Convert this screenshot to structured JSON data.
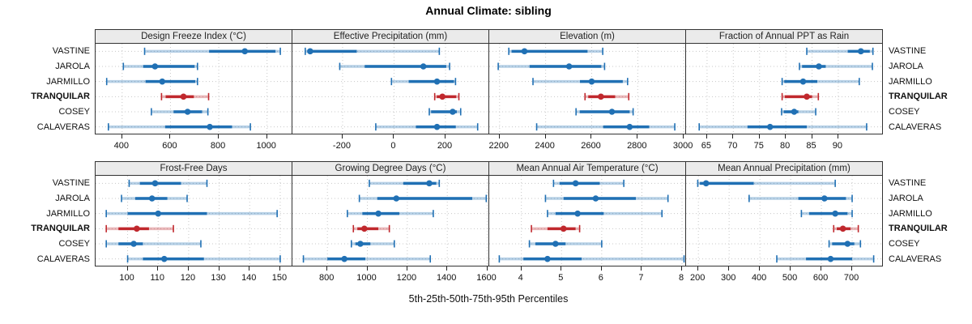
{
  "title": "Annual Climate: sibling",
  "xlabel": "5th-25th-50th-75th-95th Percentiles",
  "sites": [
    "VASTINE",
    "JAROLA",
    "JARMILLO",
    "TRANQUILAR",
    "COSEY",
    "CALAVERAS"
  ],
  "highlight_site": "TRANQUILAR",
  "percentile_labels": [
    "5th",
    "25th",
    "50th",
    "75th",
    "95th"
  ],
  "colors": {
    "normal": "#2070b4",
    "normal_light": "rgba(32,112,180,0.33)",
    "highlight": "#c0282d",
    "highlight_light": "rgba(192,40,45,0.33)",
    "grid": "#c8c8c8",
    "strip_bg": "#ebebeb",
    "border": "#333333"
  },
  "chart_data": [
    {
      "type": "dotplot-percentiles",
      "title": "Design Freeze Index (°C)",
      "xlim": [
        290,
        1105
      ],
      "ticks": [
        400,
        600,
        800,
        1000
      ],
      "percentiles": [
        [
          493,
          760,
          908,
          1035,
          1055
        ],
        [
          405,
          487,
          536,
          700,
          712
        ],
        [
          336,
          497,
          566,
          703,
          712
        ],
        [
          563,
          580,
          654,
          697,
          758
        ],
        [
          521,
          613,
          671,
          731,
          755
        ],
        [
          343,
          578,
          763,
          855,
          931
        ]
      ]
    },
    {
      "type": "dotplot-percentiles",
      "title": "Effective Precipitation (mm)",
      "xlim": [
        -395,
        370
      ],
      "ticks": [
        -200,
        0,
        200
      ],
      "percentiles": [
        [
          -345,
          -336,
          -326,
          -145,
          176
        ],
        [
          -211,
          -114,
          114,
          203,
          216
        ],
        [
          -10,
          57,
          167,
          233,
          239
        ],
        [
          158,
          166,
          188,
          242,
          252
        ],
        [
          137,
          144,
          228,
          244,
          259
        ],
        [
          -71,
          85,
          167,
          240,
          325
        ]
      ]
    },
    {
      "type": "dotplot-percentiles",
      "title": "Elevation (m)",
      "xlim": [
        2155,
        3010
      ],
      "ticks": [
        2200,
        2400,
        2600,
        2800,
        3000
      ],
      "percentiles": [
        [
          2240,
          2252,
          2308,
          2582,
          2648
        ],
        [
          2194,
          2330,
          2502,
          2642,
          2656
        ],
        [
          2345,
          2549,
          2600,
          2735,
          2756
        ],
        [
          2571,
          2585,
          2640,
          2702,
          2761
        ],
        [
          2532,
          2548,
          2688,
          2765,
          2780
        ],
        [
          2361,
          2650,
          2765,
          2850,
          2961
        ]
      ]
    },
    {
      "type": "dotplot-percentiles",
      "title": "Fraction of Annual PPT as Rain",
      "xlim": [
        61,
        98.5
      ],
      "ticks": [
        65,
        70,
        75,
        80,
        85,
        90
      ],
      "percentiles": [
        [
          84,
          91.8,
          94.3,
          96,
          96.6
        ],
        [
          82.6,
          83.1,
          86.3,
          87.6,
          96.5
        ],
        [
          79.3,
          79.7,
          83.3,
          86,
          94
        ],
        [
          79.3,
          79.8,
          84,
          85,
          86.2
        ],
        [
          79.2,
          79.6,
          81.6,
          82.4,
          85.7
        ],
        [
          63.5,
          72.7,
          77,
          84,
          95.4
        ]
      ]
    },
    {
      "type": "dotplot-percentiles",
      "title": "Frost-Free Days",
      "xlim": [
        89.5,
        154
      ],
      "ticks": [
        100,
        110,
        120,
        130,
        140,
        150
      ],
      "percentiles": [
        [
          100.5,
          104,
          109,
          117.5,
          126
        ],
        [
          98,
          102.5,
          108,
          113,
          119.5
        ],
        [
          93,
          100,
          110,
          126,
          149
        ],
        [
          93,
          97,
          103,
          107,
          115
        ],
        [
          93,
          97,
          102,
          105,
          124
        ],
        [
          100,
          105,
          112,
          125,
          150
        ]
      ]
    },
    {
      "type": "dotplot-percentiles",
      "title": "Growing Degree Days (°C)",
      "xlim": [
        625,
        1610
      ],
      "ticks": [
        800,
        1000,
        1200,
        1400,
        1600
      ],
      "percentiles": [
        [
          1010,
          1180,
          1310,
          1345,
          1360
        ],
        [
          960,
          1050,
          1145,
          1525,
          1595
        ],
        [
          900,
          975,
          1055,
          1160,
          1330
        ],
        [
          930,
          950,
          985,
          1055,
          1110
        ],
        [
          920,
          940,
          965,
          1015,
          1135
        ],
        [
          680,
          800,
          885,
          990,
          1315
        ]
      ]
    },
    {
      "type": "dotplot-percentiles",
      "title": "Mean Annual Air Temperature (°C)",
      "xlim": [
        3.2,
        8.1
      ],
      "ticks": [
        4,
        5,
        6,
        7,
        8
      ],
      "percentiles": [
        [
          4.8,
          4.95,
          5.35,
          5.95,
          6.55
        ],
        [
          4.6,
          5.05,
          5.85,
          6.85,
          7.65
        ],
        [
          4.65,
          4.85,
          5.4,
          6.05,
          7.5
        ],
        [
          4.25,
          4.65,
          5.05,
          5.35,
          5.45
        ],
        [
          4.2,
          4.35,
          4.85,
          5.1,
          6.0
        ],
        [
          3.45,
          4.05,
          4.65,
          5.5,
          8.05
        ]
      ]
    },
    {
      "type": "dotplot-percentiles",
      "title": "Mean Annual Precipitation (mm)",
      "xlim": [
        160,
        800
      ],
      "ticks": [
        200,
        300,
        400,
        500,
        600,
        700
      ],
      "percentiles": [
        [
          198,
          205,
          225,
          380,
          645
        ],
        [
          365,
          525,
          610,
          680,
          700
        ],
        [
          535,
          560,
          645,
          685,
          700
        ],
        [
          640,
          650,
          670,
          695,
          720
        ],
        [
          625,
          635,
          685,
          707,
          727
        ],
        [
          455,
          550,
          630,
          700,
          770
        ]
      ]
    }
  ]
}
